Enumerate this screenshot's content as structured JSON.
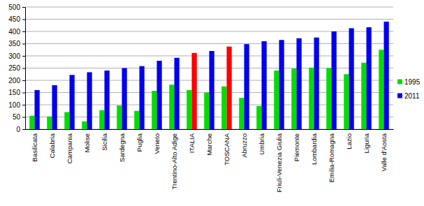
{
  "chart_data": {
    "type": "bar",
    "categories": [
      "Basilicata",
      "Calabria",
      "Campania",
      "Molise",
      "Sicilia",
      "Sardegna",
      "Puglia",
      "Veneto",
      "Trentino-Alto Adige",
      "ITALIA",
      "Marche",
      "TOSCANA",
      "Abruzzo",
      "Umbria",
      "Friuli-Venezia Giulia",
      "Piemonte",
      "Lombardia",
      "Emilia-Romagna",
      "Lazio",
      "Liguria",
      "Valle d'Aosta"
    ],
    "series": [
      {
        "name": "1995",
        "color": "#00dd00",
        "values": [
          55,
          52,
          70,
          32,
          78,
          97,
          75,
          157,
          182,
          160,
          150,
          175,
          128,
          95,
          240,
          248,
          252,
          250,
          225,
          272,
          325
        ]
      },
      {
        "name": "2011",
        "color": "#0000ee",
        "colors": [
          "#0000ee",
          "#0000ee",
          "#0000ee",
          "#0000ee",
          "#0000ee",
          "#0000ee",
          "#0000ee",
          "#0000ee",
          "#0000ee",
          "#ff0000",
          "#0000ee",
          "#ff0000",
          "#0000ee",
          "#0000ee",
          "#0000ee",
          "#0000ee",
          "#0000ee",
          "#0000ee",
          "#0000ee",
          "#0000ee",
          "#0000ee"
        ],
        "values": [
          160,
          180,
          222,
          233,
          240,
          250,
          258,
          280,
          292,
          312,
          320,
          338,
          348,
          360,
          365,
          372,
          375,
          400,
          413,
          417,
          440
        ]
      }
    ],
    "ylim": [
      0,
      500
    ],
    "yticks": [
      0,
      50,
      100,
      150,
      200,
      250,
      300,
      350,
      400,
      450,
      500
    ],
    "grid": true,
    "legend": "right"
  }
}
